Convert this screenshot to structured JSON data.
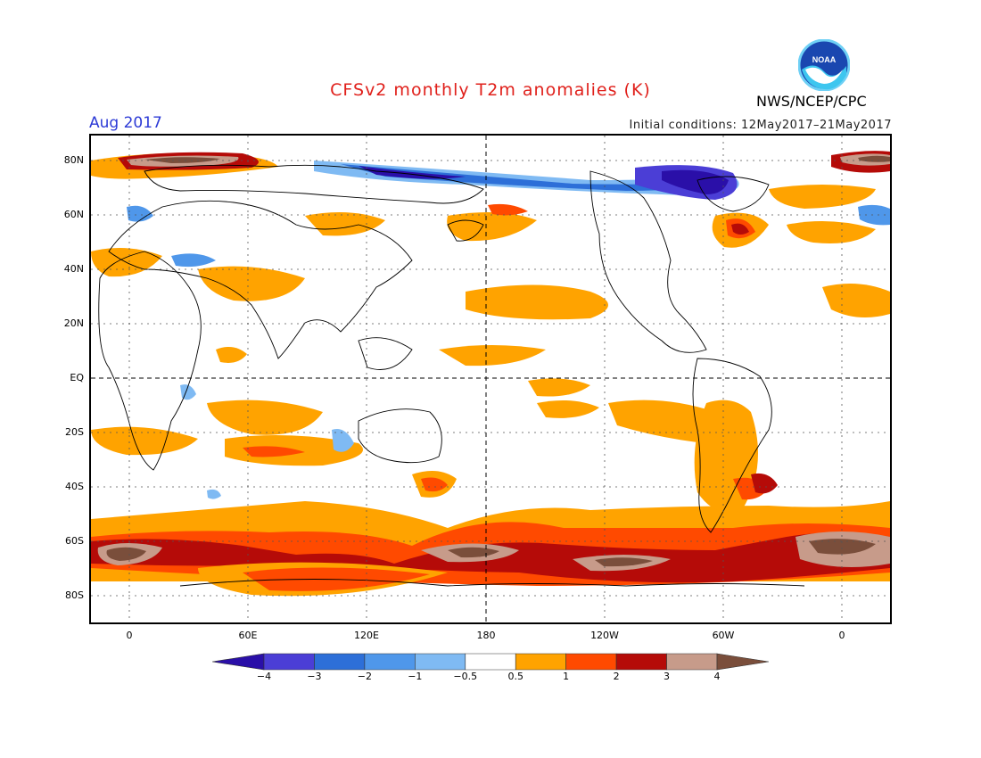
{
  "title": "CFSv2 monthly T2m anomalies (K)",
  "valid_month": "Aug 2017",
  "initial_conditions": "Initial conditions: 12May2017–21May2017",
  "agency": "NWS/NCEP/CPC",
  "logo_text": "NOAA",
  "lat_labels": [
    "80N",
    "60N",
    "40N",
    "20N",
    "EQ",
    "20S",
    "40S",
    "60S",
    "80S"
  ],
  "lon_labels": [
    "0",
    "60E",
    "120E",
    "180",
    "120W",
    "60W",
    "0"
  ],
  "colorbar": {
    "labels": [
      "−4",
      "−3",
      "−2",
      "−1",
      "−0.5",
      "0.5",
      "1",
      "2",
      "3",
      "4"
    ],
    "colors": [
      "#2a0fa8",
      "#4b3ed6",
      "#2d6fd8",
      "#4f97ea",
      "#7fbaf3",
      "#ffffff",
      "#ffa300",
      "#ff4a00",
      "#b50b08",
      "#c79b8a",
      "#7a4e3b"
    ]
  },
  "colors": {
    "title": "#e0201b",
    "month": "#2c3ad6",
    "warm_1": "#ffa300",
    "warm_2": "#ff4a00",
    "warm_3": "#b50b08",
    "warm_4": "#c79b8a",
    "warm_5": "#7a4e3b",
    "cool_1": "#7fbaf3",
    "cool_2": "#4f97ea",
    "cool_3": "#2d6fd8",
    "cool_4": "#4b3ed6",
    "cool_5": "#2a0fa8"
  }
}
